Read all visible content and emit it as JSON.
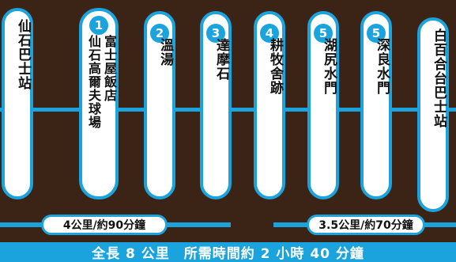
{
  "colors": {
    "background": "#3b2316",
    "route": "#1aa3dc",
    "card": "#ffffff"
  },
  "stops": [
    {
      "number": "",
      "name": "仙石巴士站"
    },
    {
      "number": "1",
      "name": "富士屋飯店",
      "name2": "仙石高爾夫球場"
    },
    {
      "number": "2",
      "name": "溫湯"
    },
    {
      "number": "3",
      "name": "達摩石"
    },
    {
      "number": "4",
      "name": "耕牧舍跡"
    },
    {
      "number": "5",
      "name": "湖尻水門"
    },
    {
      "number": "5",
      "name": "深良水門"
    },
    {
      "number": "",
      "name": "白百合台巴士站"
    }
  ],
  "segments": [
    {
      "label": "4公里/約90分鐘"
    },
    {
      "label": "3.5公里/約70分鐘"
    }
  ],
  "total": "全長 8 公里　所需時間約 2 小時 40 分鐘"
}
